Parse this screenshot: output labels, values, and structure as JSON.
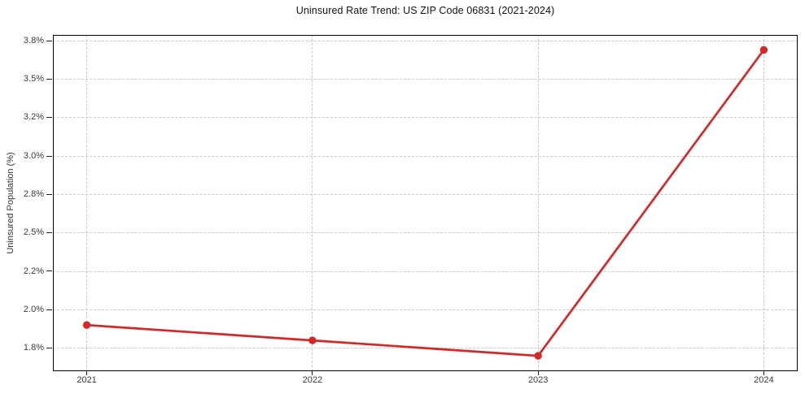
{
  "chart_data": {
    "type": "line",
    "title": "Uninsured Rate Trend: US ZIP Code 06831 (2021-2024)",
    "xlabel": "",
    "ylabel": "Uninsured Population (%)",
    "x": [
      2021,
      2022,
      2023,
      2024
    ],
    "x_tick_labels": [
      "2021",
      "2022",
      "2023",
      "2024"
    ],
    "series": [
      {
        "name": "Uninsured Population (%)",
        "values": [
          1.92,
          1.84,
          1.76,
          3.73
        ]
      }
    ],
    "y_tick_values": [
      1.8,
      2.0,
      2.2,
      2.5,
      2.8,
      3.0,
      3.2,
      3.5,
      3.8
    ],
    "y_tick_labels": [
      "1.8%",
      "2.0%",
      "2.2%",
      "2.5%",
      "2.8%",
      "3.0%",
      "3.2%",
      "3.5%",
      "3.8%"
    ],
    "y_axis_note": "tick marks evenly spaced despite uneven value steps (log-like scale)",
    "xlim": [
      2020.85,
      2024.15
    ],
    "ylim_approx": [
      1.68,
      3.85
    ],
    "grid": "both axes, dashed light gray",
    "legend": "none",
    "line_color": "#d62728",
    "marker": "circle",
    "background_color": "#ffffff"
  }
}
